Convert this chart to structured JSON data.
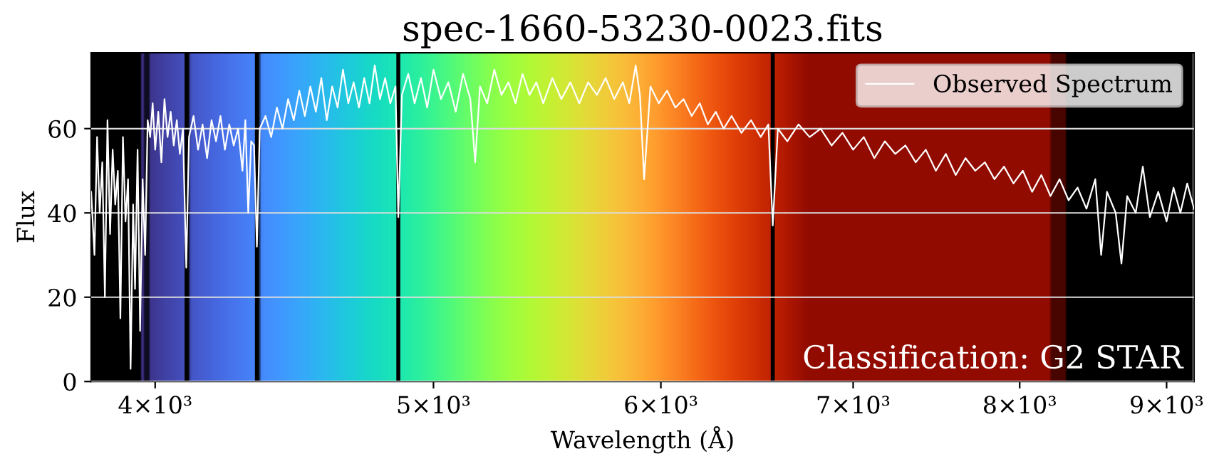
{
  "chart_data": {
    "type": "line",
    "title": "spec-1660-53230-0023.fits",
    "xlabel": "Wavelength (Å)",
    "ylabel": "Flux",
    "log": "x",
    "xlim": [
      3800,
      9200
    ],
    "ylim": [
      0,
      78
    ],
    "xticks": [
      {
        "value": 4000,
        "label": "4×10³"
      },
      {
        "value": 5000,
        "label": "5×10³"
      },
      {
        "value": 6000,
        "label": "6×10³"
      },
      {
        "value": 7000,
        "label": "7×10³"
      },
      {
        "value": 8000,
        "label": "8×10³"
      },
      {
        "value": 9000,
        "label": "9×10³"
      }
    ],
    "yticks": [
      0,
      20,
      40,
      60
    ],
    "grid": "y",
    "legend": "top right",
    "marker": "none",
    "line_style": "solid",
    "annotations": [
      "Classification: G2 STAR"
    ],
    "ref_lines": [
      {
        "axis": "x",
        "value": 4102,
        "label": null,
        "color": "#000000"
      },
      {
        "axis": "x",
        "value": 4340,
        "label": null,
        "color": "#000000"
      },
      {
        "axis": "x",
        "value": 4861,
        "label": null,
        "color": "#000000"
      },
      {
        "axis": "x",
        "value": 6563,
        "label": null,
        "color": "#000000"
      }
    ],
    "series": [
      {
        "name": "Observed Spectrum",
        "color": "#ffffff",
        "x": [
          3800,
          3810,
          3818,
          3826,
          3834,
          3842,
          3850,
          3858,
          3866,
          3874,
          3882,
          3890,
          3898,
          3906,
          3914,
          3922,
          3930,
          3936,
          3944,
          3952,
          3960,
          3968,
          3976,
          3984,
          3992,
          4000,
          4010,
          4020,
          4030,
          4040,
          4050,
          4060,
          4070,
          4080,
          4090,
          4101,
          4110,
          4125,
          4140,
          4155,
          4170,
          4185,
          4200,
          4215,
          4230,
          4245,
          4260,
          4275,
          4290,
          4300,
          4310,
          4320,
          4330,
          4340,
          4350,
          4370,
          4390,
          4410,
          4430,
          4450,
          4470,
          4490,
          4510,
          4530,
          4550,
          4570,
          4590,
          4610,
          4630,
          4650,
          4670,
          4690,
          4710,
          4730,
          4750,
          4770,
          4790,
          4810,
          4830,
          4850,
          4861,
          4875,
          4900,
          4925,
          4950,
          4975,
          5000,
          5030,
          5060,
          5090,
          5120,
          5150,
          5170,
          5190,
          5220,
          5250,
          5280,
          5310,
          5340,
          5370,
          5400,
          5430,
          5460,
          5500,
          5540,
          5580,
          5620,
          5660,
          5700,
          5740,
          5780,
          5820,
          5850,
          5880,
          5900,
          5920,
          5950,
          5990,
          6030,
          6070,
          6110,
          6150,
          6190,
          6230,
          6270,
          6310,
          6350,
          6400,
          6450,
          6500,
          6540,
          6563,
          6590,
          6640,
          6700,
          6760,
          6820,
          6880,
          6940,
          7000,
          7060,
          7120,
          7180,
          7240,
          7300,
          7360,
          7420,
          7480,
          7540,
          7600,
          7660,
          7720,
          7780,
          7840,
          7900,
          7960,
          8020,
          8080,
          8140,
          8200,
          8260,
          8320,
          8380,
          8440,
          8500,
          8540,
          8580,
          8640,
          8680,
          8720,
          8780,
          8830,
          8880,
          8940,
          9000,
          9050,
          9100,
          9150,
          9200
        ],
        "values": [
          45,
          30,
          58,
          40,
          52,
          20,
          62,
          35,
          55,
          42,
          50,
          15,
          58,
          38,
          48,
          3,
          42,
          22,
          55,
          12,
          48,
          30,
          62,
          58,
          66,
          55,
          64,
          52,
          67,
          58,
          64,
          56,
          62,
          54,
          60,
          27,
          58,
          63,
          55,
          61,
          53,
          62,
          57,
          63,
          55,
          61,
          56,
          60,
          50,
          62,
          40,
          57,
          56,
          32,
          60,
          63,
          58,
          65,
          60,
          67,
          62,
          69,
          63,
          70,
          64,
          72,
          62,
          70,
          65,
          74,
          66,
          71,
          65,
          72,
          66,
          75,
          67,
          72,
          66,
          70,
          39,
          68,
          73,
          66,
          72,
          65,
          74,
          67,
          71,
          64,
          73,
          67,
          52,
          70,
          66,
          74,
          68,
          71,
          66,
          73,
          68,
          71,
          66,
          72,
          67,
          71,
          66,
          71,
          68,
          72,
          67,
          71,
          66,
          75,
          68,
          48,
          70,
          66,
          69,
          65,
          67,
          63,
          66,
          61,
          64,
          60,
          63,
          59,
          62,
          58,
          61,
          37,
          60,
          57,
          61,
          58,
          60,
          56,
          59,
          55,
          58,
          53,
          57,
          54,
          56,
          52,
          55,
          50,
          54,
          49,
          53,
          50,
          52,
          48,
          51,
          47,
          50,
          45,
          49,
          44,
          48,
          43,
          46,
          41,
          48,
          30,
          45,
          40,
          28,
          44,
          40,
          51,
          39,
          45,
          38,
          46,
          40,
          47,
          41
        ]
      }
    ]
  }
}
